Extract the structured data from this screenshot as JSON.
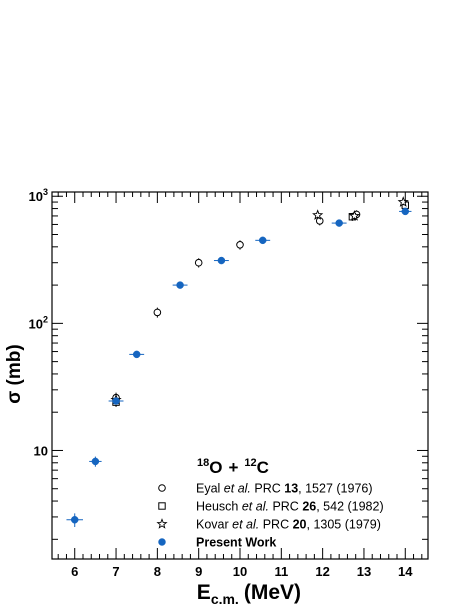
{
  "chart_data": {
    "type": "scatter",
    "title": "",
    "reaction_label": {
      "projectile_mass": "18",
      "projectile": "O",
      "plus": "+",
      "target_mass": "12",
      "target": "C"
    },
    "xlabel": {
      "main": "E",
      "subscript": "c.m.",
      "units": "(MeV)"
    },
    "ylabel": "σ (mb)",
    "xlim": [
      5.45,
      14.55
    ],
    "ylim": [
      1.4,
      1080
    ],
    "yscale": "log",
    "grid": false,
    "legend_position": "bottom-right",
    "x_ticks": [
      "6",
      "7",
      "8",
      "9",
      "10",
      "11",
      "12",
      "13",
      "14"
    ],
    "y_ticks": [
      {
        "value": 10,
        "base": "10",
        "exp": ""
      },
      {
        "value": 100,
        "base": "10",
        "exp": "2"
      },
      {
        "value": 1000,
        "base": "10",
        "exp": "3"
      }
    ],
    "series": [
      {
        "marker": "open-circle",
        "color": "#000000",
        "legend": {
          "authors": "Eyal ",
          "etal": "et al.",
          "journal": " PRC ",
          "volume": "13",
          "rest": ", 1527 (1976)"
        },
        "points": [
          {
            "x": 7.0,
            "y": 26,
            "yerr": 2.5,
            "xerr": 0
          },
          {
            "x": 8.0,
            "y": 122,
            "yerr": 11,
            "xerr": 0
          },
          {
            "x": 9.0,
            "y": 300,
            "yerr": 25,
            "xerr": 0
          },
          {
            "x": 10.0,
            "y": 415,
            "yerr": 35,
            "xerr": 0
          },
          {
            "x": 11.93,
            "y": 640,
            "yerr": 50,
            "xerr": 0
          },
          {
            "x": 12.82,
            "y": 720,
            "yerr": 55,
            "xerr": 0
          }
        ]
      },
      {
        "marker": "open-square",
        "color": "#000000",
        "legend": {
          "authors": "Heusch ",
          "etal": "et al.",
          "journal": " PRC ",
          "volume": "26",
          "rest": ", 542 (1982)"
        },
        "points": [
          {
            "x": 7.0,
            "y": 24,
            "yerr": 2,
            "xerr": 0
          },
          {
            "x": 12.72,
            "y": 690,
            "yerr": 50,
            "xerr": 0
          },
          {
            "x": 14.0,
            "y": 850,
            "yerr": 60,
            "xerr": 0
          }
        ]
      },
      {
        "marker": "open-star",
        "color": "#000000",
        "legend": {
          "authors": "Kovar ",
          "etal": "et al.",
          "journal": " PRC ",
          "volume": "20",
          "rest": ", 1305 (1979)"
        },
        "points": [
          {
            "x": 7.0,
            "y": 25,
            "yerr": 2,
            "xerr": 0
          },
          {
            "x": 11.88,
            "y": 710,
            "yerr": 40,
            "xerr": 0
          },
          {
            "x": 12.77,
            "y": 700,
            "yerr": 45,
            "xerr": 0
          },
          {
            "x": 13.95,
            "y": 900,
            "yerr": 50,
            "xerr": 0
          }
        ]
      },
      {
        "marker": "filled-circle",
        "color": "#1565c0",
        "legend": {
          "authors": "Present Work",
          "etal": "",
          "journal": "",
          "volume": "",
          "rest": ""
        },
        "points": [
          {
            "x": 6.0,
            "y": 2.85,
            "yerr": 0.35,
            "xerr": 0.2
          },
          {
            "x": 6.5,
            "y": 8.2,
            "yerr": 0.75,
            "xerr": 0.15
          },
          {
            "x": 7.0,
            "y": 24.5,
            "yerr": 1.5,
            "xerr": 0.18
          },
          {
            "x": 7.5,
            "y": 57,
            "yerr": 2.5,
            "xerr": 0.18
          },
          {
            "x": 8.55,
            "y": 200,
            "yerr": 8,
            "xerr": 0.18
          },
          {
            "x": 9.55,
            "y": 312,
            "yerr": 10,
            "xerr": 0.18
          },
          {
            "x": 10.55,
            "y": 450,
            "yerr": 12,
            "xerr": 0.18
          },
          {
            "x": 12.4,
            "y": 615,
            "yerr": 15,
            "xerr": 0.18
          },
          {
            "x": 14.0,
            "y": 760,
            "yerr": 18,
            "xerr": 0.15
          }
        ]
      }
    ]
  }
}
